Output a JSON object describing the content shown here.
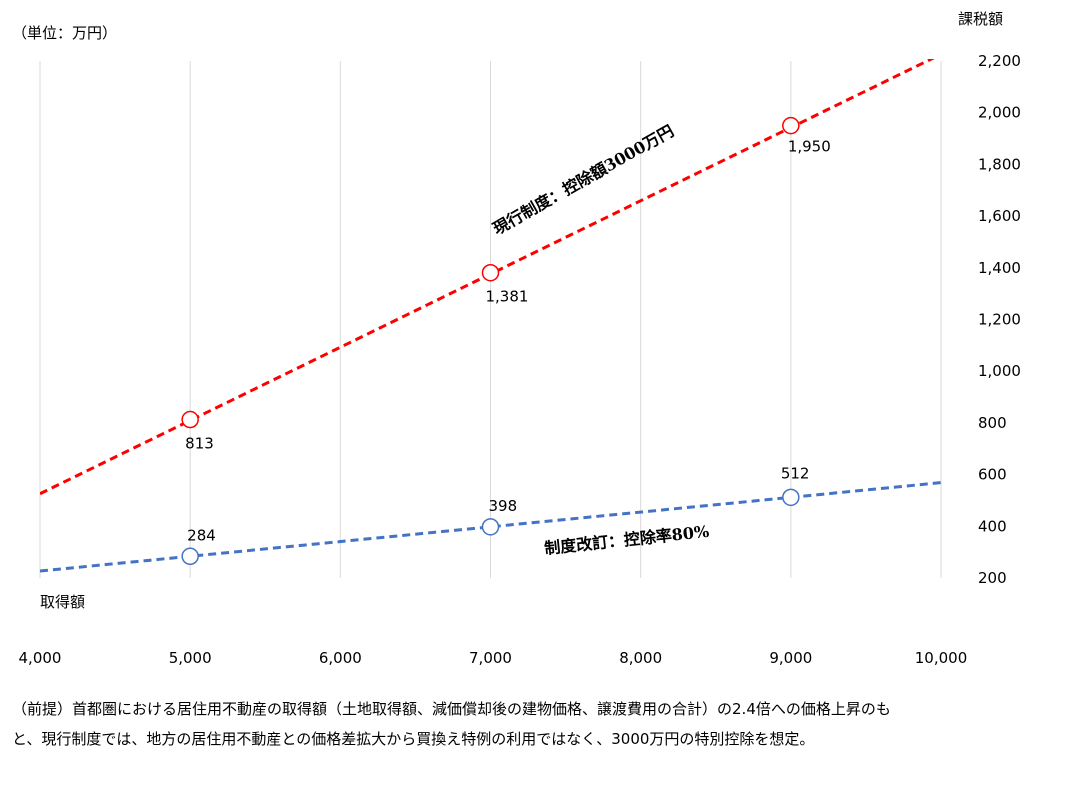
{
  "unit_label": "（単位：万円）",
  "chart_data": {
    "type": "line",
    "title": "",
    "xlabel": "取得額",
    "ylabel": "課税額",
    "xlim": [
      4000,
      10000
    ],
    "ylim": [
      200,
      2200
    ],
    "x_ticks": [
      "4,000",
      "5,000",
      "6,000",
      "7,000",
      "8,000",
      "9,000",
      "10,000"
    ],
    "x_tick_values": [
      4000,
      5000,
      6000,
      7000,
      8000,
      9000,
      10000
    ],
    "y_ticks": [
      "2,200",
      "2,000",
      "1,800",
      "1,600",
      "1,400",
      "1,200",
      "1,000",
      "800",
      "600",
      "400",
      "200"
    ],
    "y_tick_values": [
      2200,
      2000,
      1800,
      1600,
      1400,
      1200,
      1000,
      800,
      600,
      400,
      200
    ],
    "y_axis_side": "right",
    "grid": "vertical",
    "series": [
      {
        "name": "現行制度：控除額3000万円",
        "color": "#ff0000",
        "line_style": "dashed",
        "line": [
          [
            4000,
            526
          ],
          [
            10000,
            2226
          ]
        ],
        "markers": [
          {
            "x": 5000,
            "y": 813,
            "label": "813"
          },
          {
            "x": 7000,
            "y": 1381,
            "label": "1,381"
          },
          {
            "x": 9000,
            "y": 1950,
            "label": "1,950"
          }
        ]
      },
      {
        "name": "制度改訂：控除率80%",
        "color": "#4472c4",
        "line_style": "dashed",
        "line": [
          [
            4000,
            227
          ],
          [
            10000,
            569
          ]
        ],
        "markers": [
          {
            "x": 5000,
            "y": 284,
            "label": "284"
          },
          {
            "x": 7000,
            "y": 398,
            "label": "398"
          },
          {
            "x": 9000,
            "y": 512,
            "label": "512"
          }
        ]
      }
    ]
  },
  "note": [
    "（前提）首都圏における居住用不動産の取得額（土地取得額、減価償却後の建物価格、譲渡費用の合計）の2.4倍への価格上昇のも",
    "と、現行制度では、地方の居住用不動産との価格差拡大から買換え特例の利用ではなく、3000万円の特別控除を想定。"
  ]
}
